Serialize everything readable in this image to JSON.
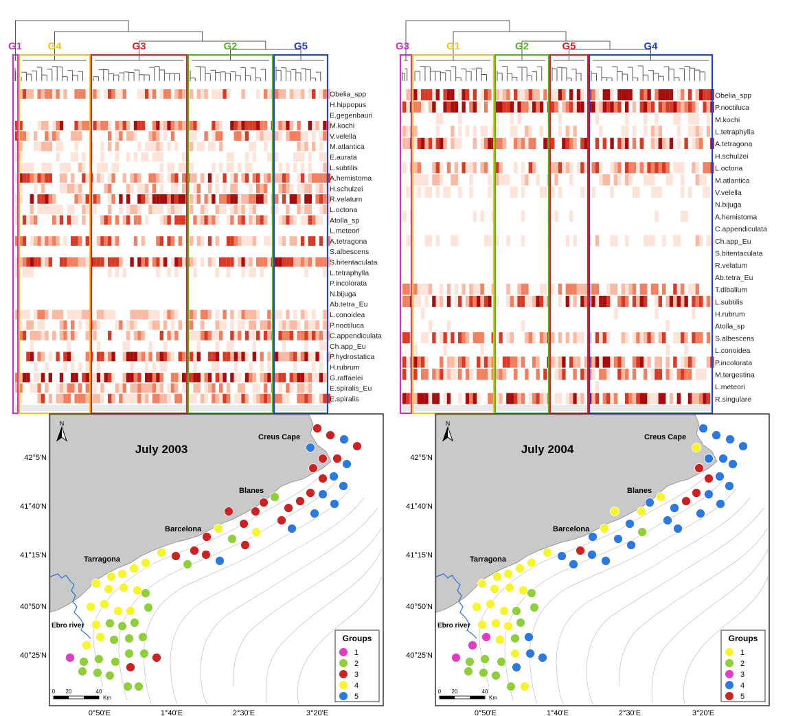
{
  "colors": {
    "group_magenta": "#cc33cc",
    "group_yellow": "#f0c419",
    "group_red": "#e02020",
    "group_green": "#4bb81f",
    "group_blue": "#2244cc",
    "heat_low": "#fde3d8",
    "heat_mid": "#f08060",
    "heat_high": "#b01010",
    "land": "#c9c9c9",
    "sea": "#ffffff",
    "river": "#2a6fd6",
    "dot_1_2003": "#f5f52a",
    "dot_2_2003": "#8fcf3c",
    "dot_3_2003": "#cc2222",
    "dot_4_2003": "#f5f52a",
    "dot_5_2003": "#2a78e0",
    "dot_pink": "#e23cc2"
  },
  "panels": [
    {
      "id": "2003",
      "groups": [
        {
          "label": "G1",
          "color": "#cc33cc",
          "width_cols": 2
        },
        {
          "label": "G4",
          "color": "#f0c419",
          "width_cols": 14
        },
        {
          "label": "G3",
          "color": "#e02020",
          "width_cols": 18
        },
        {
          "label": "G2",
          "color": "#4bb81f",
          "width_cols": 16
        },
        {
          "label": "G5",
          "color": "#2244cc",
          "width_cols": 10
        }
      ],
      "species": [
        "Obelia_spp",
        "H.hippopus",
        "E.gegenbauri",
        "M.kochi",
        "V.velella",
        "M.atlantica",
        "E.aurata",
        "L.subtilis",
        "A.hemistoma",
        "H.schulzei",
        "R.velatum",
        "L.octona",
        "Atolla_sp",
        "L.meteori",
        "A.tetragona",
        "S.albescens",
        "S.bitentaculata",
        "L.tetraphylla",
        "P.incolorata",
        "N.bijuga",
        "Ab.tetra_Eu",
        "L.conoidea",
        "P.noctiluca",
        "C.appendiculata",
        "Ch.app_Eu",
        "P.hydrostatica",
        "H.rubrum",
        "G.raffaelei",
        "E.spiralis_Eu",
        "E.spiralis"
      ],
      "map": {
        "title": "July 2003",
        "lat_labels": [
          "42°5'N",
          "41°40'N",
          "41°15'N",
          "40°50'N",
          "40°25'N"
        ],
        "lon_labels": [
          "0°50'E",
          "1°40'E",
          "2°30'E",
          "3°20'E"
        ],
        "places": {
          "creus": "Creus Cape",
          "blanes": "Blanes",
          "barcelona": "Barcelona",
          "tarragona": "Tarragona",
          "ebro": "Ebro river"
        },
        "north": "N",
        "scale": {
          "z": "0",
          "a": "20",
          "b": "40",
          "unit": "Km"
        },
        "legend_title": "Groups",
        "legend": [
          {
            "label": "1",
            "color": "#e23cc2"
          },
          {
            "label": "2",
            "color": "#8fcf3c"
          },
          {
            "label": "3",
            "color": "#cc2222"
          },
          {
            "label": "4",
            "color": "#f5f52a"
          },
          {
            "label": "5",
            "color": "#2a78e0"
          }
        ]
      }
    },
    {
      "id": "2004",
      "groups": [
        {
          "label": "G3",
          "color": "#cc33cc",
          "width_cols": 2
        },
        {
          "label": "G1",
          "color": "#f0c419",
          "width_cols": 14
        },
        {
          "label": "G2",
          "color": "#4bb81f",
          "width_cols": 9
        },
        {
          "label": "G5",
          "color": "#e02020",
          "width_cols": 6
        },
        {
          "label": "G4",
          "color": "#2244cc",
          "width_cols": 20
        }
      ],
      "species": [
        "Obelia_spp",
        "P.noctiluca",
        "M.kochi",
        "L.tetraphylla",
        "A.tetragona",
        "H.schulzei",
        "L.octona",
        "M.atlantica",
        "V.velella",
        "N.bijuga",
        "A.hemistoma",
        "C.appendiculata",
        "Ch.app_Eu",
        "S.bitentaculata",
        "R.velatum",
        "Ab.tetra_Eu",
        "T.dibalium",
        "L.subtilis",
        "H.rubrum",
        "Atolla_sp",
        "S.albescens",
        "L.conoidea",
        "P.incolorata",
        "M.tergestina",
        "L.meteori",
        "R.singulare"
      ],
      "map": {
        "title": "July 2004",
        "lat_labels": [
          "42°5'N",
          "41°40'N",
          "41°15'N",
          "40°50'N",
          "40°25'N"
        ],
        "lon_labels": [
          "0°50'E",
          "1°40'E",
          "2°30'E",
          "3°20'E"
        ],
        "places": {
          "creus": "Creus Cape",
          "blanes": "Blanes",
          "barcelona": "Barcelona",
          "tarragona": "Tarragona",
          "ebro": "Ebro river"
        },
        "north": "N",
        "scale": {
          "z": "0",
          "a": "20",
          "b": "40",
          "unit": "Km"
        },
        "legend_title": "Groups",
        "legend": [
          {
            "label": "1",
            "color": "#f5f52a"
          },
          {
            "label": "2",
            "color": "#8fcf3c"
          },
          {
            "label": "3",
            "color": "#e23cc2"
          },
          {
            "label": "4",
            "color": "#2a78e0"
          },
          {
            "label": "5",
            "color": "#cc2222"
          }
        ]
      }
    }
  ]
}
